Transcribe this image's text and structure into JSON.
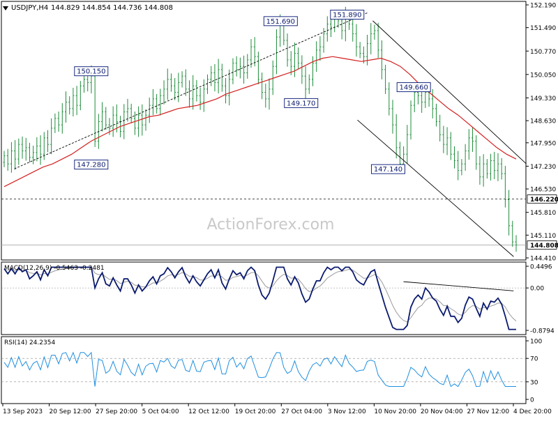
{
  "header": {
    "symbol": "USDJPY,H4",
    "ohlc": "144.829 144.854 144.736 144.808"
  },
  "watermark": "ActionForex.com",
  "colors": {
    "candle": "#1e8c3a",
    "ema": "#d42020",
    "macd": "#0a1a6e",
    "signal": "#9a9a9a",
    "rsi": "#1e8fe0",
    "trend": "#000000",
    "label_border": "#1a2a80",
    "frame": "#000000"
  },
  "chart_data": [
    {
      "type": "candlestick",
      "title": "USDJPY,H4",
      "ylim": [
        144.41,
        152.19
      ],
      "y_ticks": [
        "152.190",
        "151.490",
        "150.770",
        "150.050",
        "149.330",
        "148.630",
        "147.950",
        "147.230",
        "146.530",
        "145.810",
        "145.110",
        "144.410"
      ],
      "price_labels": {
        "current": "144.808",
        "level": "146.220"
      },
      "annotations": [
        {
          "text": "150.150",
          "price": 150.15
        },
        {
          "text": "147.280",
          "price": 147.28
        },
        {
          "text": "151.690",
          "price": 151.69
        },
        {
          "text": "149.170",
          "price": 149.17
        },
        {
          "text": "151.890",
          "price": 151.89
        },
        {
          "text": "149.660",
          "price": 149.66
        },
        {
          "text": "147.140",
          "price": 147.14
        }
      ],
      "series_close": [
        147.55,
        147.3,
        147.7,
        147.45,
        147.9,
        147.7,
        147.8,
        147.5,
        147.65,
        147.85,
        147.6,
        148.1,
        147.9,
        148.4,
        148.7,
        148.5,
        148.9,
        149.2,
        149.0,
        149.4,
        149.1,
        149.7,
        149.9,
        149.8,
        150.0,
        148.0,
        148.6,
        148.9,
        148.5,
        148.4,
        148.8,
        148.6,
        148.3,
        148.9,
        149.0,
        148.7,
        148.4,
        148.8,
        148.5,
        148.8,
        149.1,
        149.3,
        149.0,
        149.4,
        149.6,
        149.9,
        149.7,
        149.5,
        149.8,
        150.0,
        149.6,
        149.3,
        149.7,
        149.4,
        149.2,
        149.6,
        149.9,
        150.1,
        149.8,
        150.2,
        149.7,
        149.4,
        149.9,
        150.4,
        150.2,
        150.3,
        150.1,
        150.5,
        150.9,
        150.6,
        149.9,
        149.5,
        149.3,
        149.6,
        150.3,
        151.2,
        151.6,
        151.1,
        150.5,
        150.3,
        150.7,
        150.4,
        150.0,
        149.6,
        149.9,
        150.4,
        150.8,
        150.9,
        151.3,
        151.6,
        151.5,
        151.8,
        151.7,
        151.4,
        151.8,
        151.6,
        151.3,
        150.9,
        150.7,
        150.6,
        151.0,
        151.3,
        151.4,
        150.8,
        150.2,
        149.6,
        149.0,
        148.5,
        147.8,
        147.3,
        147.6,
        148.2,
        149.1,
        149.5,
        149.4,
        149.2,
        149.5,
        149.3,
        149.0,
        148.6,
        148.2,
        147.9,
        148.1,
        147.6,
        147.4,
        147.1,
        147.3,
        147.7,
        148.1,
        148.0,
        147.3,
        146.9,
        147.3,
        147.0,
        147.4,
        147.1,
        147.3,
        147.0,
        146.2,
        145.4,
        144.9,
        144.81
      ],
      "series_ema": [
        146.6,
        146.75,
        146.9,
        147.05,
        147.2,
        147.3,
        147.45,
        147.6,
        147.8,
        148.0,
        148.15,
        148.3,
        148.45,
        148.55,
        148.65,
        148.75,
        148.8,
        148.9,
        149.0,
        149.05,
        149.1,
        149.2,
        149.3,
        149.45,
        149.55,
        149.65,
        149.75,
        149.85,
        149.95,
        150.05,
        150.15,
        150.3,
        150.45,
        150.55,
        150.6,
        150.55,
        150.5,
        150.45,
        150.5,
        150.55,
        150.45,
        150.3,
        150.05,
        149.75,
        149.5,
        149.25,
        149.0,
        148.8,
        148.55,
        148.3,
        148.05,
        147.8,
        147.6,
        147.45
      ],
      "macd_ylim": [
        -0.8794,
        0.4496
      ],
      "macd_ticks": [
        "0.4496",
        "0.00",
        "-0.8794"
      ],
      "macd_title": "MACD(12,26,9) -0.5463 -0.2481",
      "rsi_ticks": [
        "100",
        "70",
        "30",
        "0"
      ],
      "rsi_levels": [
        70,
        30
      ],
      "rsi_title": "RSI(14) 24.2354",
      "x_labels": [
        "13 Sep 2023",
        "20 Sep 12:00",
        "27 Sep 20:00",
        "5 Oct 04:00",
        "12 Oct 12:00",
        "19 Oct 20:00",
        "27 Oct 04:00",
        "3 Nov 12:00",
        "10 Nov 20:00",
        "20 Nov 04:00",
        "27 Nov 12:00",
        "4 Dec 20:00"
      ]
    }
  ]
}
